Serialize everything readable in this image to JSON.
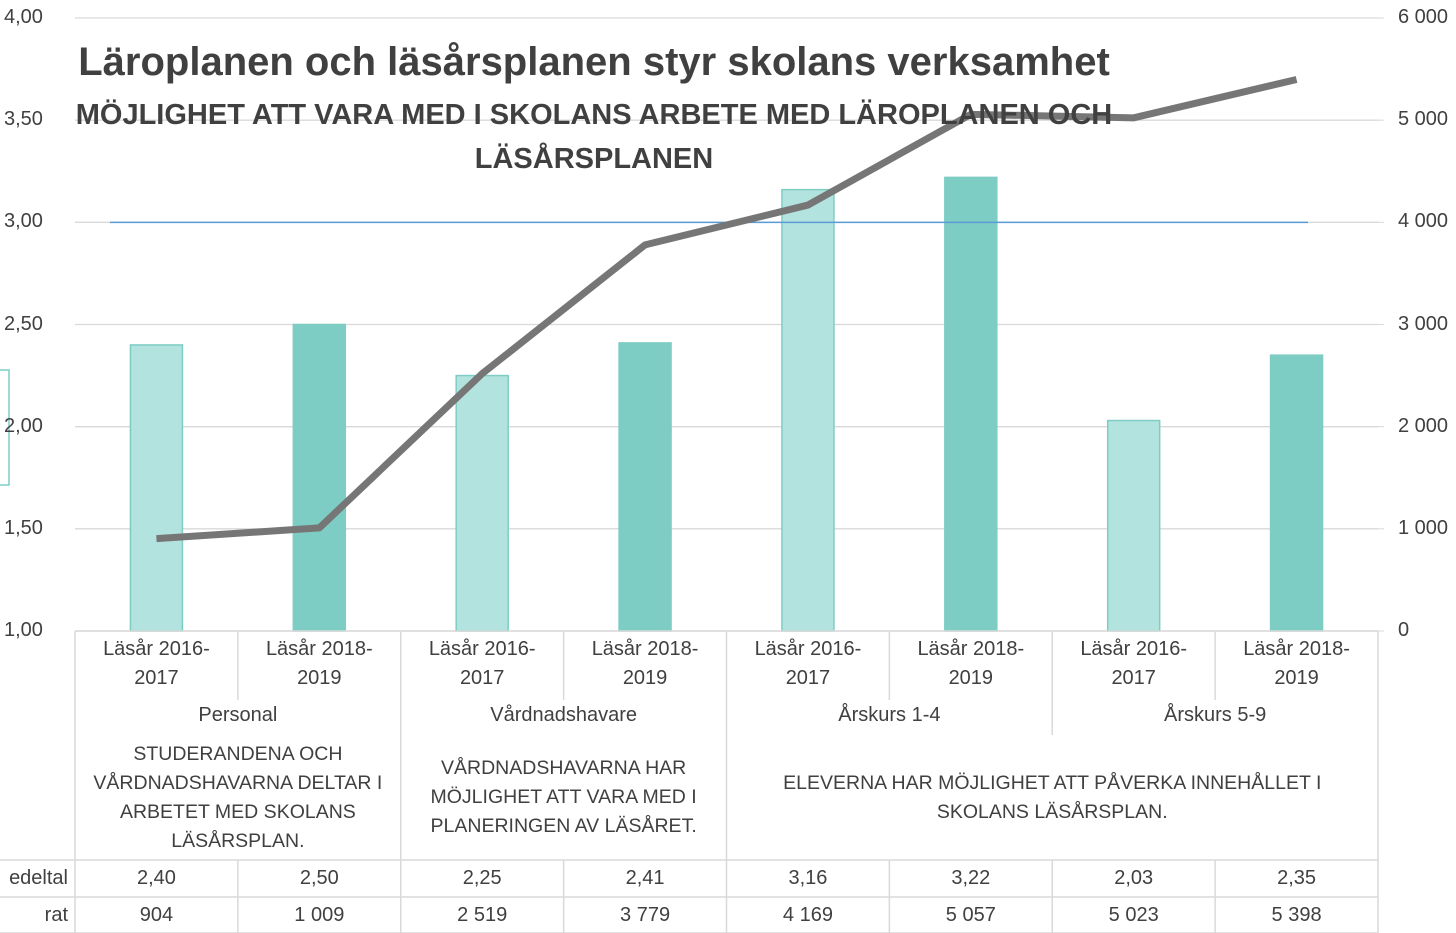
{
  "chart_data": {
    "type": "bar_line",
    "title": "Läroplanen och läsårsplanen styr skolans verksamhet",
    "subtitle": [
      "MÖJLIGHET ATT VARA MED I SKOLANS ARBETE MED LÄROPLANEN OCH",
      "LÄSÅRSPLANEN"
    ],
    "categories": [
      "Läsår 2016-2017",
      "Läsår 2018-2019",
      "Läsår 2016-2017",
      "Läsår 2018-2019",
      "Läsår 2016-2017",
      "Läsår 2018-2019",
      "Läsår 2016-2017",
      "Läsår 2018-2019"
    ],
    "groups": [
      {
        "label": "Personal",
        "start": 0,
        "end": 1
      },
      {
        "label": "Vårdnadshavare",
        "start": 2,
        "end": 3
      },
      {
        "label": "Årskurs 1-4",
        "start": 4,
        "end": 5
      },
      {
        "label": "Årskurs 5-9",
        "start": 6,
        "end": 7
      }
    ],
    "statements": [
      {
        "label": "STUDERANDENA OCH VÅRDNADSHAVARNA DELTAR I ARBETET MED SKOLANS LÄSÅRSPLAN.",
        "start": 0,
        "end": 1
      },
      {
        "label": "VÅRDNADSHAVARNA HAR MÖJLIGHET ATT VARA MED I PLANERINGEN AV LÄSÅRET.",
        "start": 2,
        "end": 3
      },
      {
        "label": "ELEVERNA HAR MÖJLIGHET ATT PÅVERKA INNEHÅLLET I SKOLANS LÄSÅRSPLAN.",
        "start": 4,
        "end": 7
      }
    ],
    "series": [
      {
        "name": "edeltal",
        "type": "bar",
        "axis": "y",
        "colors": [
          "#b3e3de",
          "#7ecdc5",
          "#b3e3de",
          "#7ecdc5",
          "#b3e3de",
          "#7ecdc5",
          "#b3e3de",
          "#7ecdc5"
        ],
        "values": [
          2.4,
          2.5,
          2.25,
          2.41,
          3.16,
          3.22,
          2.03,
          2.35
        ],
        "value_labels": [
          "2,40",
          "2,50",
          "2,25",
          "2,41",
          "3,16",
          "3,22",
          "2,03",
          "2,35"
        ]
      },
      {
        "name": "rat",
        "type": "line",
        "axis": "y2",
        "color": "#767676",
        "values": [
          904,
          1009,
          2519,
          3779,
          4169,
          5057,
          5023,
          5398
        ],
        "value_labels": [
          "904",
          "1 009",
          "2 519",
          "3 779",
          "4 169",
          "5 057",
          "5 023",
          "5 398"
        ]
      }
    ],
    "reference_line": {
      "value": 3,
      "color": "#5b9bd5"
    },
    "ylim": [
      1,
      4
    ],
    "yticks": [
      {
        "value": 1,
        "label": "1,00"
      },
      {
        "value": 1.5,
        "label": "1,50"
      },
      {
        "value": 2,
        "label": "2,00"
      },
      {
        "value": 2.5,
        "label": "2,50"
      },
      {
        "value": 3,
        "label": "3,00"
      },
      {
        "value": 3.5,
        "label": "3,50"
      },
      {
        "value": 4,
        "label": "4,00"
      }
    ],
    "y2lim": [
      0,
      6000
    ],
    "y2ticks": [
      0,
      {
        "value": 1000,
        "label": "1 000"
      },
      {
        "value": 2000,
        "label": "2 000"
      },
      {
        "value": 3000,
        "label": "3 000"
      },
      {
        "value": 4000,
        "label": "4 000"
      },
      {
        "value": 5000,
        "label": "5 000"
      },
      {
        "value": 6000,
        "label": "6 000"
      }
    ],
    "grid": true
  }
}
